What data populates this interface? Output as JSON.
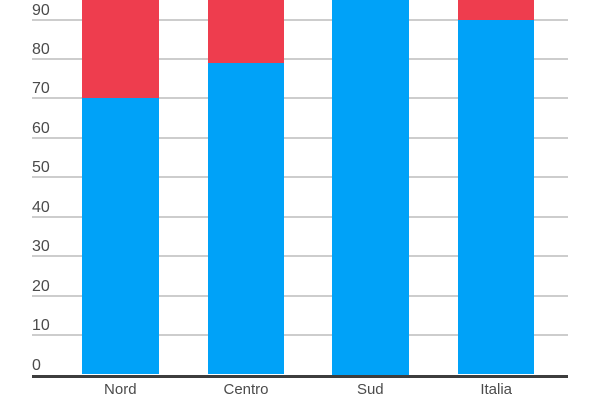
{
  "chart_data": {
    "type": "bar",
    "stacked": true,
    "orientation": "vertical",
    "categories": [
      "Nord",
      "Centro",
      "Sud",
      "Italia"
    ],
    "series": [
      {
        "name": "blue-bottom-segment",
        "color": "#00a2f8",
        "values": [
          70,
          79,
          100,
          90
        ]
      },
      {
        "name": "red-top-segment",
        "color": "#ee3d4e",
        "values": [
          30,
          21,
          0,
          10
        ]
      }
    ],
    "y_ticks": [
      0,
      10,
      20,
      30,
      40,
      50,
      60,
      70,
      80,
      90
    ],
    "y_tick_labels": [
      "0",
      "10",
      "20",
      "30",
      "40",
      "50",
      "60",
      "70",
      "80",
      "90"
    ],
    "ylim_visible": [
      0,
      95
    ],
    "grid": true,
    "legend": "none visible (image cropped at top; red segments and tops of bars are cut off by the top edge)",
    "title": "",
    "xlabel": "",
    "ylabel": ""
  },
  "colors": {
    "bar_blue": "#00a2f8",
    "bar_red": "#ee3d4e",
    "gridline": "#cdcdcd",
    "baseline": "#3d3d3d",
    "tick_text": "#4b4b4b",
    "category_text": "#4b4b4b",
    "background": "#ffffff"
  }
}
